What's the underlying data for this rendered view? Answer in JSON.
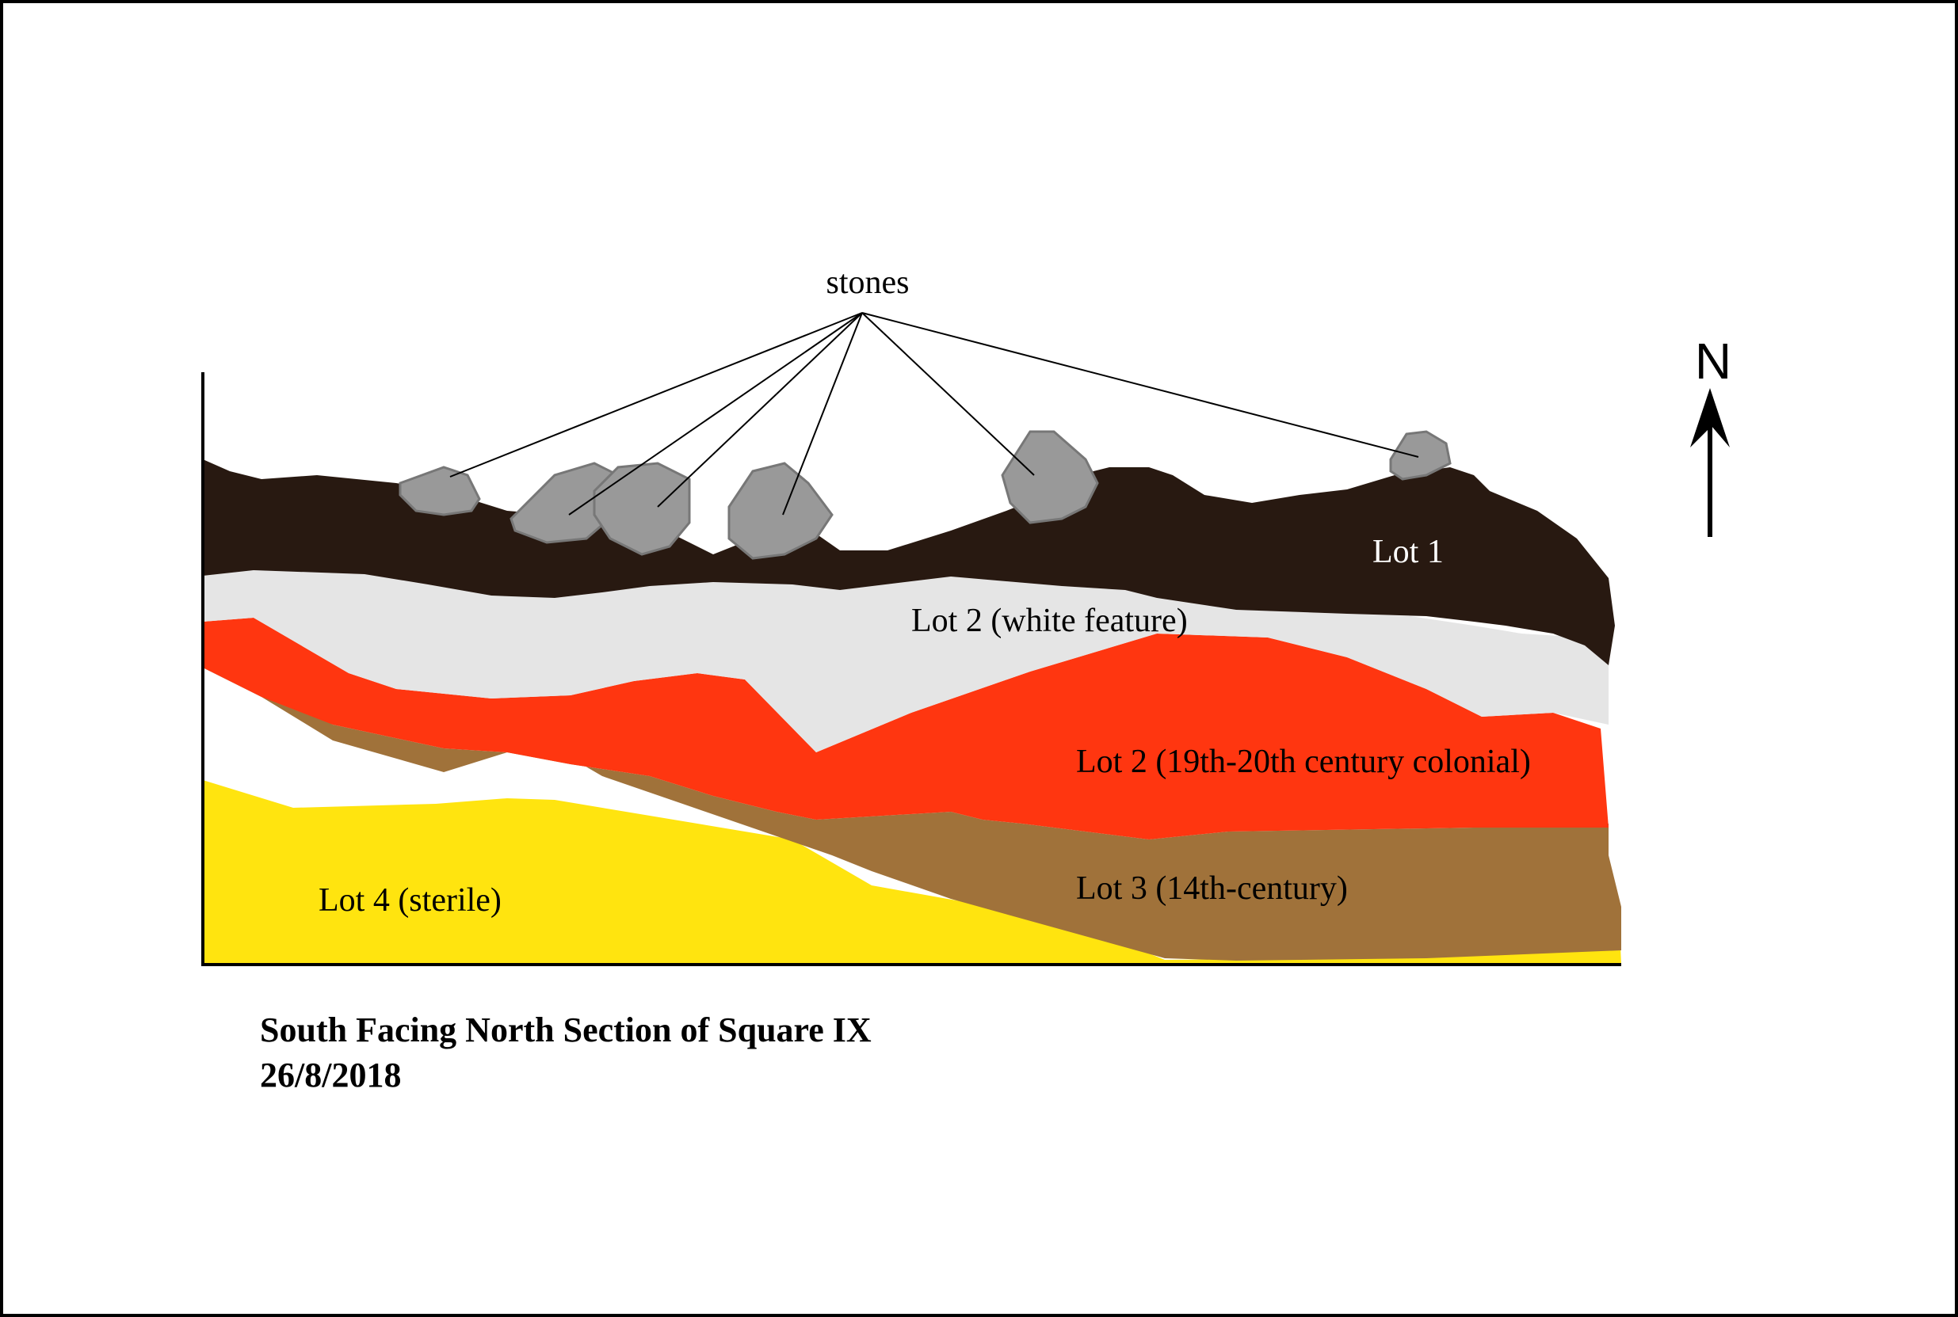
{
  "labels": {
    "stones": "stones",
    "lot1": "Lot 1",
    "lot2_white": "Lot 2 (white feature)",
    "lot2_colonial": "Lot 2 (19th-20th century colonial)",
    "lot3": "Lot 3 (14th-century)",
    "lot4": "Lot 4 (sterile)"
  },
  "north": {
    "letter": "N"
  },
  "caption": {
    "title": "South Facing North Section of Square IX",
    "date": "26/8/2018"
  },
  "colors": {
    "lot1": "#281911",
    "lot2_white": "#e5e5e5",
    "lot2_colonial": "#ff3610",
    "lot3": "#a0723a",
    "lot4": "#ffe40f",
    "stone_fill": "#999999",
    "stone_edge": "#777777"
  }
}
